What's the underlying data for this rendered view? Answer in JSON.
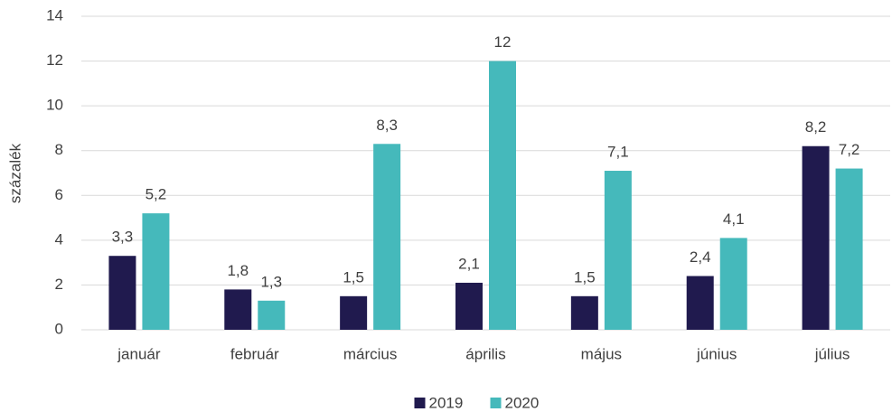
{
  "chart_data": {
    "type": "bar",
    "ylabel": "százalék",
    "categories": [
      "január",
      "február",
      "március",
      "április",
      "május",
      "június",
      "július"
    ],
    "series": [
      {
        "name": "2019",
        "color": "#201a4e",
        "values": [
          3.3,
          1.8,
          1.5,
          2.1,
          1.5,
          2.4,
          8.2
        ],
        "value_labels": [
          "3,3",
          "1,8",
          "1,5",
          "2,1",
          "1,5",
          "2,4",
          "8,2"
        ]
      },
      {
        "name": "2020",
        "color": "#45b9bb",
        "values": [
          5.2,
          1.3,
          8.3,
          12,
          7.1,
          4.1,
          7.2
        ],
        "value_labels": [
          "5,2",
          "1,3",
          "8,3",
          "12",
          "7,1",
          "4,1",
          "7,2"
        ]
      }
    ],
    "ylim": [
      0,
      14
    ],
    "yticks": [
      0,
      2,
      4,
      6,
      8,
      10,
      12,
      14
    ],
    "grid": true,
    "legend": "bottom"
  }
}
